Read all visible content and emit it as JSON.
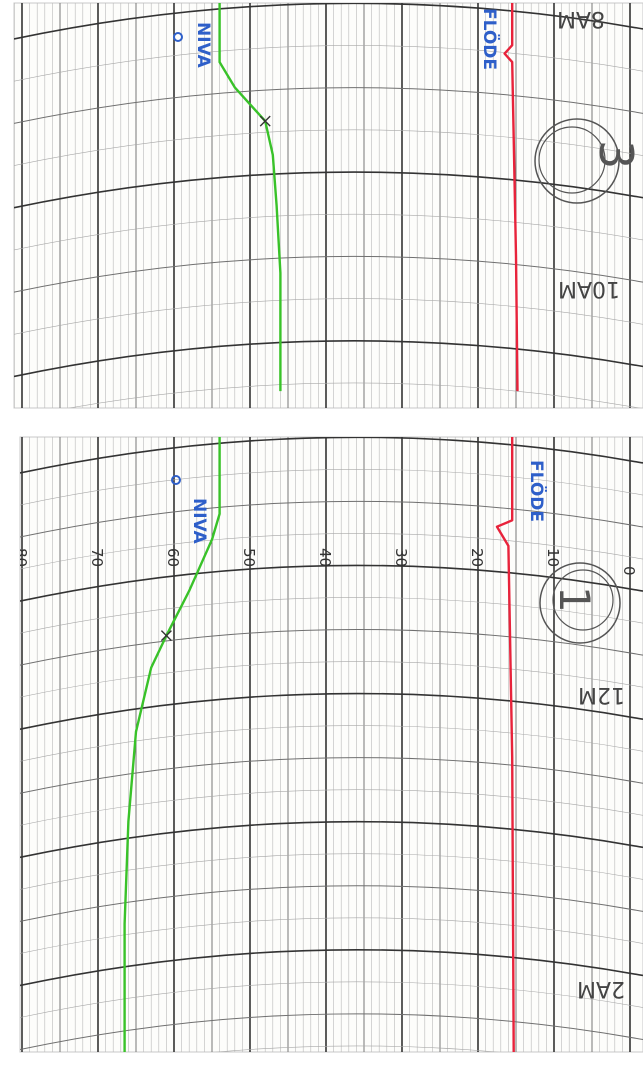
{
  "chart_data": [
    {
      "type": "line",
      "panel_number": "3",
      "time_labels": [
        "8AM",
        "10AM"
      ],
      "series": [
        {
          "name": "NIVA",
          "color": "#39c229",
          "points": [
            [
              3.0,
              54
            ],
            [
              3.35,
              54
            ],
            [
              3.5,
              52
            ],
            [
              3.7,
              48
            ],
            [
              3.9,
              47
            ],
            [
              4.2,
              46.5
            ],
            [
              4.6,
              46
            ],
            [
              5.0,
              46
            ],
            [
              5.3,
              46
            ]
          ]
        },
        {
          "name": "FLÖDE",
          "color": "#e8233b",
          "points": [
            [
              3.0,
              15.5
            ],
            [
              3.25,
              15.5
            ],
            [
              3.3,
              16.5
            ],
            [
              3.35,
              15.5
            ],
            [
              3.8,
              15.3
            ],
            [
              4.5,
              15
            ],
            [
              5.3,
              14.8
            ]
          ]
        }
      ]
    },
    {
      "type": "line",
      "panel_number": "1",
      "time_labels": [
        "12M",
        "2AM"
      ],
      "y_ticks": [
        "80",
        "70",
        "60",
        "50",
        "40",
        "30",
        "20",
        "10",
        "0"
      ],
      "series": [
        {
          "name": "NIVA",
          "color": "#39c229",
          "points": [
            [
              0.0,
              54
            ],
            [
              0.6,
              54
            ],
            [
              0.8,
              55
            ],
            [
              1.2,
              58
            ],
            [
              1.55,
              61
            ],
            [
              1.8,
              63
            ],
            [
              2.3,
              65
            ],
            [
              3.0,
              66
            ],
            [
              3.8,
              66.5
            ],
            [
              4.8,
              66.5
            ]
          ]
        },
        {
          "name": "FLÖDE",
          "color": "#e8233b",
          "points": [
            [
              0.0,
              15.5
            ],
            [
              0.65,
              15.5
            ],
            [
              0.7,
              17.5
            ],
            [
              0.85,
              16
            ],
            [
              1.5,
              15.8
            ],
            [
              2.5,
              15.5
            ],
            [
              4.8,
              15.3
            ]
          ]
        }
      ]
    }
  ]
}
